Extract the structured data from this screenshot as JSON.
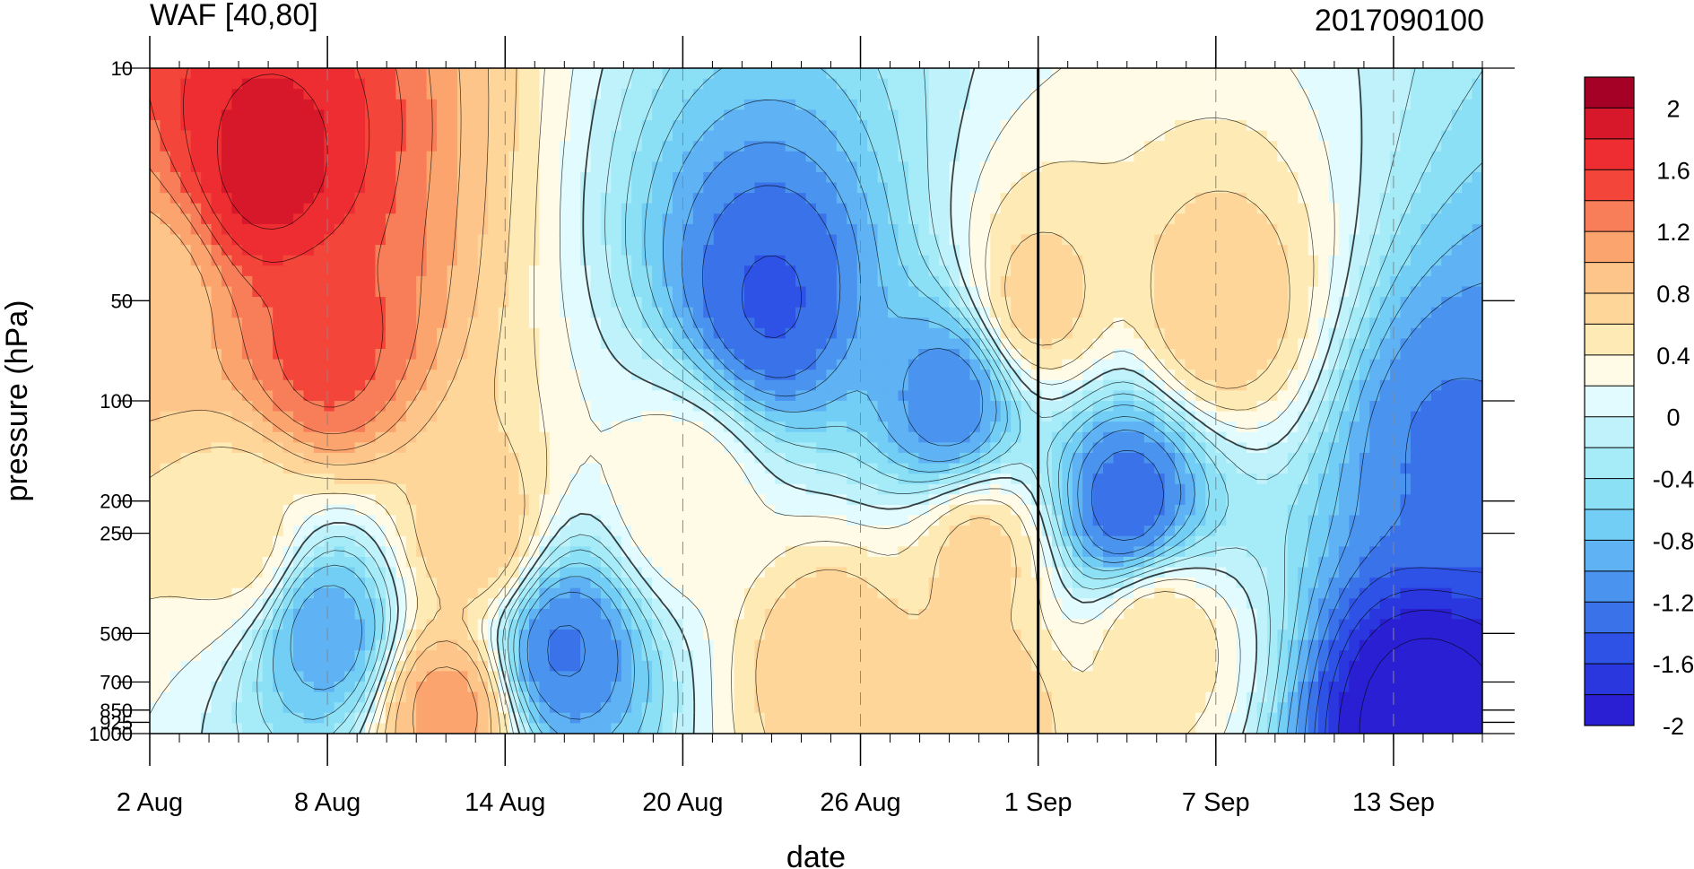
{
  "chart_data": {
    "type": "heatmap",
    "title": "WAF [40,80]",
    "subtitle": "2017090100",
    "xlabel": "date",
    "ylabel": "pressure (hPa)",
    "x_range": [
      "2017-08-02",
      "2017-09-16"
    ],
    "x_ticks": [
      {
        "date": "2017-08-02",
        "label": "2 Aug"
      },
      {
        "date": "2017-08-08",
        "label": "8 Aug"
      },
      {
        "date": "2017-08-14",
        "label": "14 Aug"
      },
      {
        "date": "2017-08-20",
        "label": "20 Aug"
      },
      {
        "date": "2017-08-26",
        "label": "26 Aug"
      },
      {
        "date": "2017-09-01",
        "label": "1 Sep"
      },
      {
        "date": "2017-09-07",
        "label": "7 Sep"
      },
      {
        "date": "2017-09-13",
        "label": "13 Sep"
      }
    ],
    "y_scale": "log",
    "y_reversed": true,
    "y_range": [
      1000,
      10
    ],
    "y_ticks": [
      {
        "value": 10,
        "label": "10"
      },
      {
        "value": 50,
        "label": "50"
      },
      {
        "value": 100,
        "label": "100"
      },
      {
        "value": 200,
        "label": "200"
      },
      {
        "value": 250,
        "label": "250"
      },
      {
        "value": 500,
        "label": "500"
      },
      {
        "value": 700,
        "label": "700"
      },
      {
        "value": 850,
        "label": "850"
      },
      {
        "value": 925,
        "label": "925"
      },
      {
        "value": 1000,
        "label": "1000"
      }
    ],
    "vertical_line_date": "2017-09-01",
    "dashed_grid_dates": [
      "2017-08-08",
      "2017-08-14",
      "2017-08-20",
      "2017-08-26",
      "2017-09-07",
      "2017-09-13"
    ],
    "colorbar": {
      "labels": [
        {
          "value": 2,
          "label": "2"
        },
        {
          "value": 1.6,
          "label": "1.6"
        },
        {
          "value": 1.2,
          "label": "1.2"
        },
        {
          "value": 0.8,
          "label": "0.8"
        },
        {
          "value": 0.4,
          "label": "0.4"
        },
        {
          "value": 0,
          "label": "0"
        },
        {
          "value": -0.4,
          "label": "-0.4"
        },
        {
          "value": -0.8,
          "label": "-0.8"
        },
        {
          "value": -1.2,
          "label": "-1.2"
        },
        {
          "value": -1.6,
          "label": "-1.6"
        },
        {
          "value": -2,
          "label": "-2"
        }
      ],
      "colors_top_to_bottom": [
        "#a50026",
        "#d7182a",
        "#ee2d32",
        "#f4453a",
        "#f87e59",
        "#fca46e",
        "#fdc58a",
        "#fed69a",
        "#feeab4",
        "#fffbe6",
        "#e2fbff",
        "#bff2fb",
        "#a6ebf8",
        "#8ce0f6",
        "#73cef6",
        "#5fb3f4",
        "#4a94ef",
        "#3a72ea",
        "#2f52e6",
        "#2a36de",
        "#2a1fd2"
      ]
    },
    "features": [
      {
        "type": "max",
        "date": "2017-08-06",
        "pressure": 20,
        "value": 2.0
      },
      {
        "type": "max",
        "date": "2017-08-08",
        "pressure": 70,
        "value": 1.6
      },
      {
        "type": "max",
        "date": "2017-08-02",
        "pressure": 50,
        "value": 1.0
      },
      {
        "type": "max",
        "date": "2017-08-05",
        "pressure": 260,
        "value": 0.6
      },
      {
        "type": "max",
        "date": "2017-08-12",
        "pressure": 850,
        "value": 1.2
      },
      {
        "type": "max",
        "date": "2017-08-13",
        "pressure": 250,
        "value": 0.9
      },
      {
        "type": "max",
        "date": "2017-08-20",
        "pressure": 200,
        "value": 0.5
      },
      {
        "type": "max",
        "date": "2017-08-25",
        "pressure": 600,
        "value": 0.9
      },
      {
        "type": "max",
        "date": "2017-08-30",
        "pressure": 300,
        "value": 0.8
      },
      {
        "type": "max",
        "date": "2017-08-30",
        "pressure": 870,
        "value": 0.9
      },
      {
        "type": "max",
        "date": "2017-09-01",
        "pressure": 50,
        "value": 0.8
      },
      {
        "type": "max",
        "date": "2017-09-05",
        "pressure": 520,
        "value": 0.7
      },
      {
        "type": "max",
        "date": "2017-09-07",
        "pressure": 55,
        "value": 0.9
      },
      {
        "type": "min",
        "date": "2017-08-08",
        "pressure": 500,
        "value": -0.8
      },
      {
        "type": "min",
        "date": "2017-08-16",
        "pressure": 560,
        "value": -1.1
      },
      {
        "type": "min",
        "date": "2017-08-23",
        "pressure": 50,
        "value": -1.3
      },
      {
        "type": "min",
        "date": "2017-08-29",
        "pressure": 100,
        "value": -1.0
      },
      {
        "type": "min",
        "date": "2017-09-04",
        "pressure": 200,
        "value": -1.2
      },
      {
        "type": "min",
        "date": "2017-09-15",
        "pressure": 140,
        "value": -1.1
      },
      {
        "type": "min",
        "date": "2017-09-14",
        "pressure": 920,
        "value": -2.0
      }
    ]
  }
}
